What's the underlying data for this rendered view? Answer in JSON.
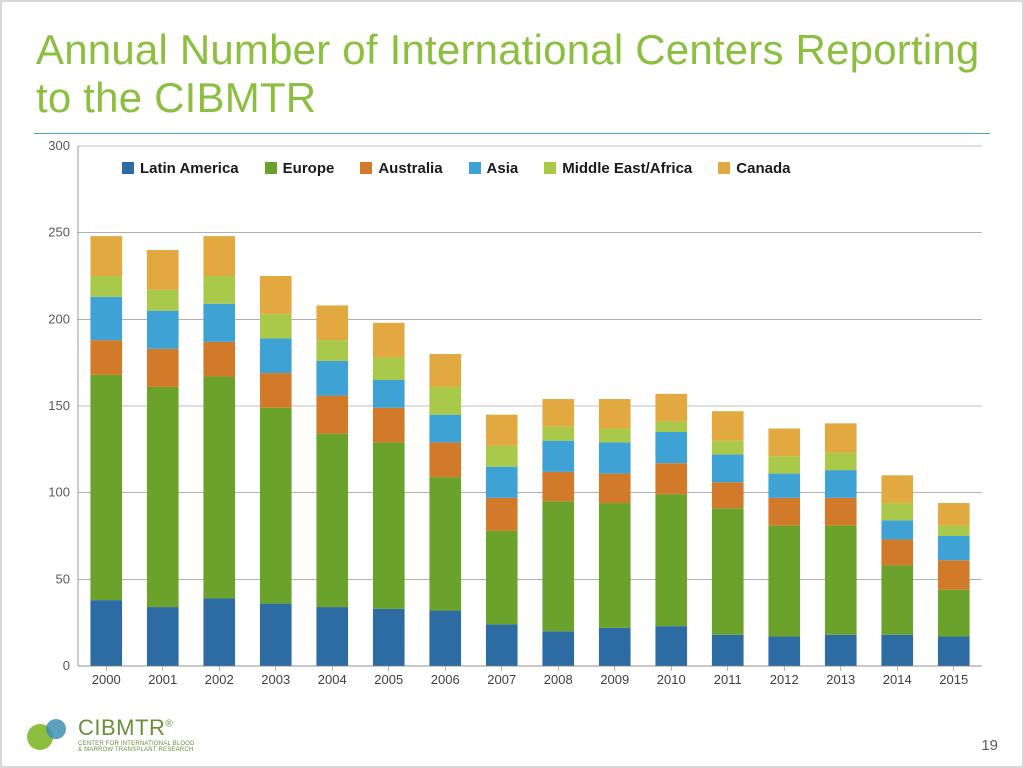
{
  "slide": {
    "title": "Annual Number of International Centers Reporting to the CIBMTR",
    "title_color": "#8cbf3f",
    "title_fontsize": 42,
    "underline_color": "#4aa7c4",
    "page_number": "19"
  },
  "logo": {
    "name": "CIBMTR",
    "subtitle_line1": "CENTER FOR INTERNATIONAL BLOOD",
    "subtitle_line2": "& MARROW TRANSPLANT RESEARCH",
    "dot_green": "#8cbf3f",
    "dot_blue": "#3e8fb0"
  },
  "chart": {
    "type": "stacked-bar",
    "background_color": "#ffffff",
    "plot_border_color": "#808080",
    "grid_color": "#808080",
    "axis_label_fontsize": 13,
    "legend_fontsize": 15,
    "ylim": [
      0,
      300
    ],
    "ytick_step": 50,
    "yticks": [
      0,
      50,
      100,
      150,
      200,
      250,
      300
    ],
    "categories": [
      "2000",
      "2001",
      "2002",
      "2003",
      "2004",
      "2005",
      "2006",
      "2007",
      "2008",
      "2009",
      "2010",
      "2011",
      "2012",
      "2013",
      "2014",
      "2015"
    ],
    "series": [
      {
        "name": "Latin America",
        "color": "#2d6ca2"
      },
      {
        "name": "Europe",
        "color": "#6aa22b"
      },
      {
        "name": "Australia",
        "color": "#d17a2a"
      },
      {
        "name": "Asia",
        "color": "#3fa2d4"
      },
      {
        "name": "Middle East/Africa",
        "color": "#a8c94a"
      },
      {
        "name": "Canada",
        "color": "#e1a93f"
      }
    ],
    "values_by_category": {
      "2000": [
        38,
        130,
        20,
        25,
        12,
        23
      ],
      "2001": [
        34,
        127,
        22,
        22,
        12,
        23
      ],
      "2002": [
        39,
        128,
        20,
        22,
        16,
        23
      ],
      "2003": [
        36,
        113,
        20,
        20,
        14,
        22
      ],
      "2004": [
        34,
        100,
        22,
        20,
        12,
        20
      ],
      "2005": [
        33,
        96,
        20,
        16,
        13,
        20
      ],
      "2006": [
        32,
        77,
        20,
        16,
        16,
        19
      ],
      "2007": [
        24,
        54,
        19,
        18,
        12,
        18
      ],
      "2008": [
        20,
        75,
        17,
        18,
        8,
        16
      ],
      "2009": [
        22,
        72,
        17,
        18,
        8,
        17
      ],
      "2010": [
        23,
        76,
        18,
        18,
        6,
        16
      ],
      "2011": [
        18,
        73,
        15,
        16,
        8,
        17
      ],
      "2012": [
        17,
        64,
        16,
        14,
        10,
        16
      ],
      "2013": [
        18,
        63,
        16,
        16,
        10,
        17
      ],
      "2014": [
        18,
        40,
        15,
        11,
        10,
        16
      ],
      "2015": [
        17,
        27,
        17,
        14,
        6,
        13
      ]
    },
    "bar_width_ratio": 0.56
  }
}
